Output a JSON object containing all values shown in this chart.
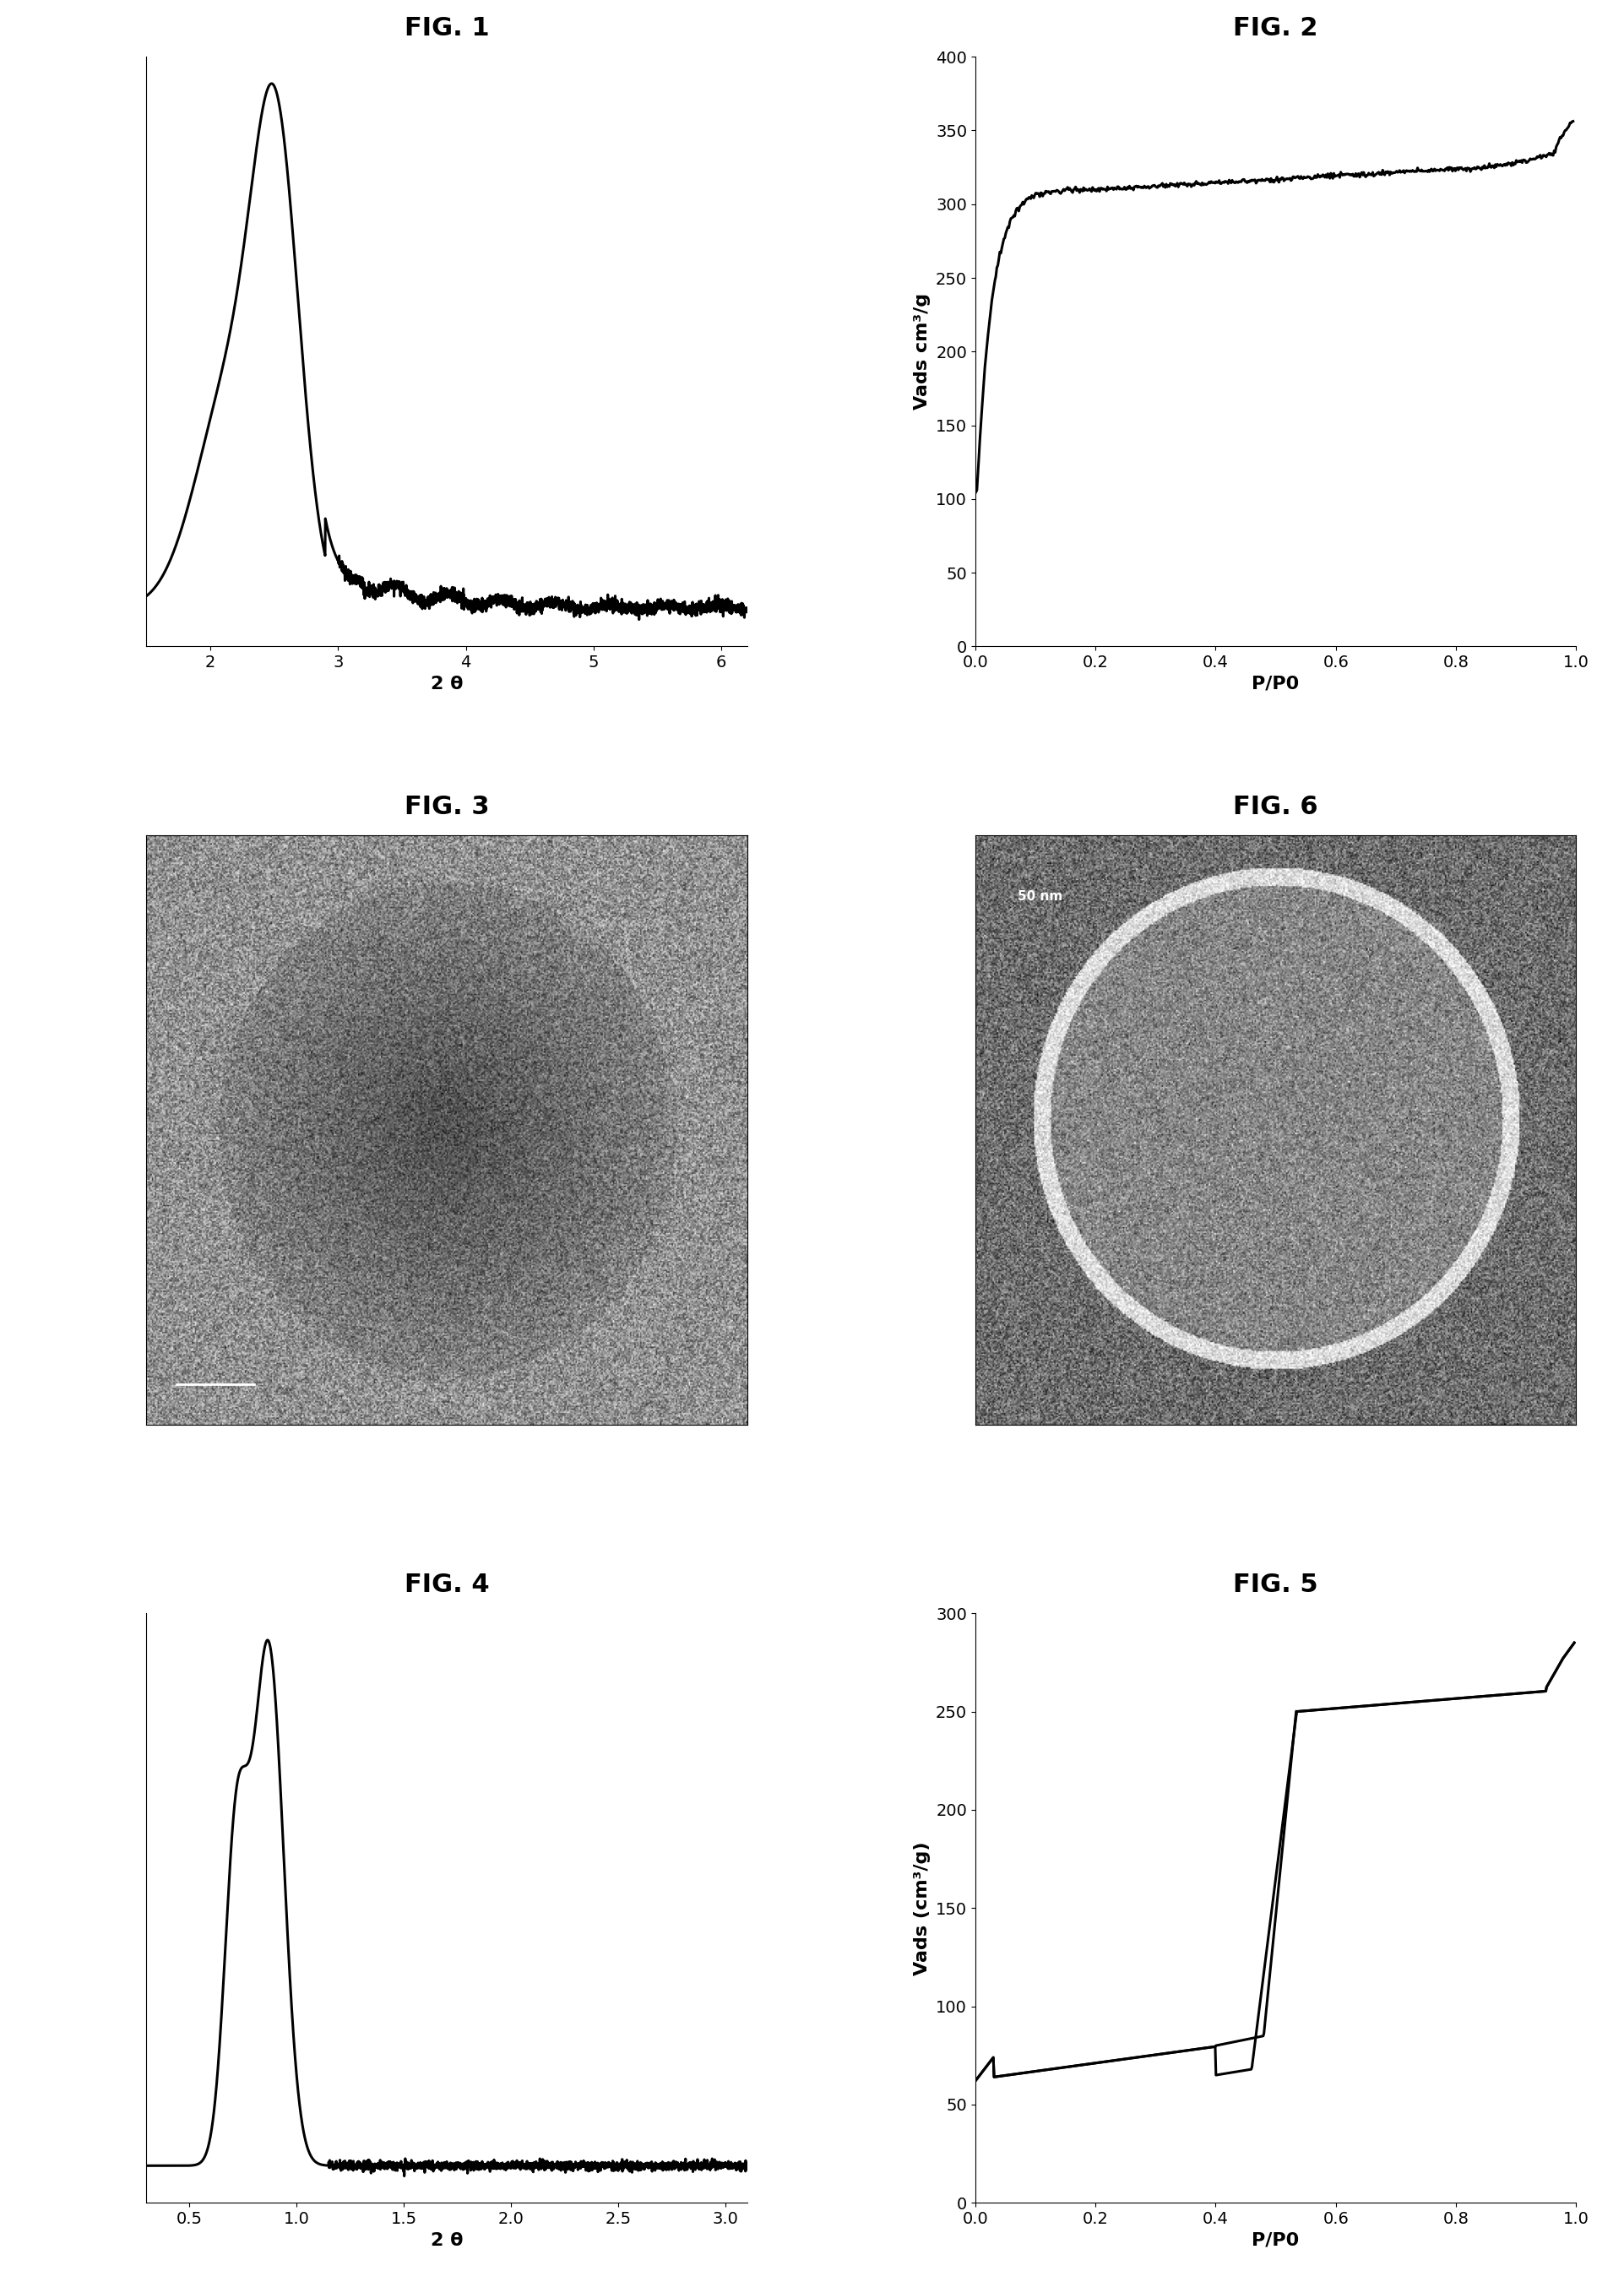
{
  "fig1_title": "FIG. 1",
  "fig2_title": "FIG. 2",
  "fig3_title": "FIG. 3",
  "fig4_title": "FIG. 4",
  "fig5_title": "FIG. 5",
  "fig6_title": "FIG. 6",
  "fig1_xlabel": "2 θ",
  "fig1_xlim": [
    1.5,
    6.2
  ],
  "fig1_xticks": [
    2,
    3,
    4,
    5,
    6
  ],
  "fig2_xlabel": "P/P0",
  "fig2_ylabel": "Vads cm³/g",
  "fig2_xlim": [
    0,
    1.0
  ],
  "fig2_ylim": [
    0,
    400
  ],
  "fig2_xticks": [
    0,
    0.2,
    0.4,
    0.6,
    0.8,
    1.0
  ],
  "fig2_yticks": [
    0,
    50,
    100,
    150,
    200,
    250,
    300,
    350,
    400
  ],
  "fig4_xlabel": "2 θ",
  "fig4_xlim": [
    0.3,
    3.1
  ],
  "fig4_xticks": [
    0.5,
    1.0,
    1.5,
    2.0,
    2.5,
    3.0
  ],
  "fig5_xlabel": "P/P0",
  "fig5_ylabel": "Vads (cm³/g)",
  "fig5_xlim": [
    0,
    1.0
  ],
  "fig5_ylim": [
    0,
    300
  ],
  "fig5_xticks": [
    0,
    0.2,
    0.4,
    0.6,
    0.8,
    1.0
  ],
  "fig5_yticks": [
    0,
    50,
    100,
    150,
    200,
    250,
    300
  ],
  "title_fontsize": 22,
  "axis_fontsize": 16,
  "tick_fontsize": 14,
  "line_color": "#000000",
  "background_color": "#ffffff"
}
